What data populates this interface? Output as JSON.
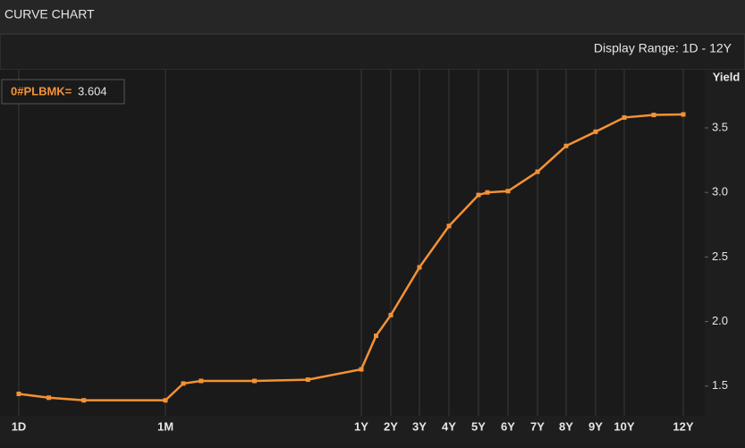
{
  "header": {
    "title": "CURVE CHART"
  },
  "toolbar": {
    "display_range": "Display Range: 1D - 12Y"
  },
  "chart_data": {
    "type": "line",
    "y_axis_label": "Yield",
    "x": [
      0.0027,
      0.0192,
      0.0384,
      0.0833,
      0.1667,
      0.25,
      0.5,
      0.75,
      1,
      1.5,
      2,
      3,
      4,
      5,
      5.3,
      6,
      7,
      8,
      9,
      10,
      11,
      12
    ],
    "series": [
      {
        "name": "0#PLBMK=",
        "last_value": 3.604,
        "color": "#f39236",
        "values": [
          1.44,
          1.41,
          1.39,
          1.39,
          1.52,
          1.54,
          1.54,
          1.55,
          1.63,
          1.89,
          2.05,
          2.42,
          2.74,
          2.98,
          3.0,
          3.01,
          3.16,
          3.36,
          3.47,
          3.58,
          3.6,
          3.604
        ]
      }
    ],
    "xlim": [
      0,
      12.7
    ],
    "xticks": [
      {
        "value": 0.0027,
        "label": "1D"
      },
      {
        "value": 0.0833,
        "label": "1M"
      },
      {
        "value": 1,
        "label": "1Y"
      },
      {
        "value": 2,
        "label": "2Y"
      },
      {
        "value": 3,
        "label": "3Y"
      },
      {
        "value": 4,
        "label": "4Y"
      },
      {
        "value": 5,
        "label": "5Y"
      },
      {
        "value": 6,
        "label": "6Y"
      },
      {
        "value": 7,
        "label": "7Y"
      },
      {
        "value": 8,
        "label": "8Y"
      },
      {
        "value": 9,
        "label": "9Y"
      },
      {
        "value": 10,
        "label": "10Y"
      },
      {
        "value": 12,
        "label": "12Y"
      }
    ],
    "ylim": [
      1.27,
      3.95
    ],
    "yticks": [
      1.5,
      {
        "value": 2,
        "label": "2.0"
      },
      2.5,
      {
        "value": 3,
        "label": "3.0"
      },
      3.5
    ],
    "grid": true
  }
}
